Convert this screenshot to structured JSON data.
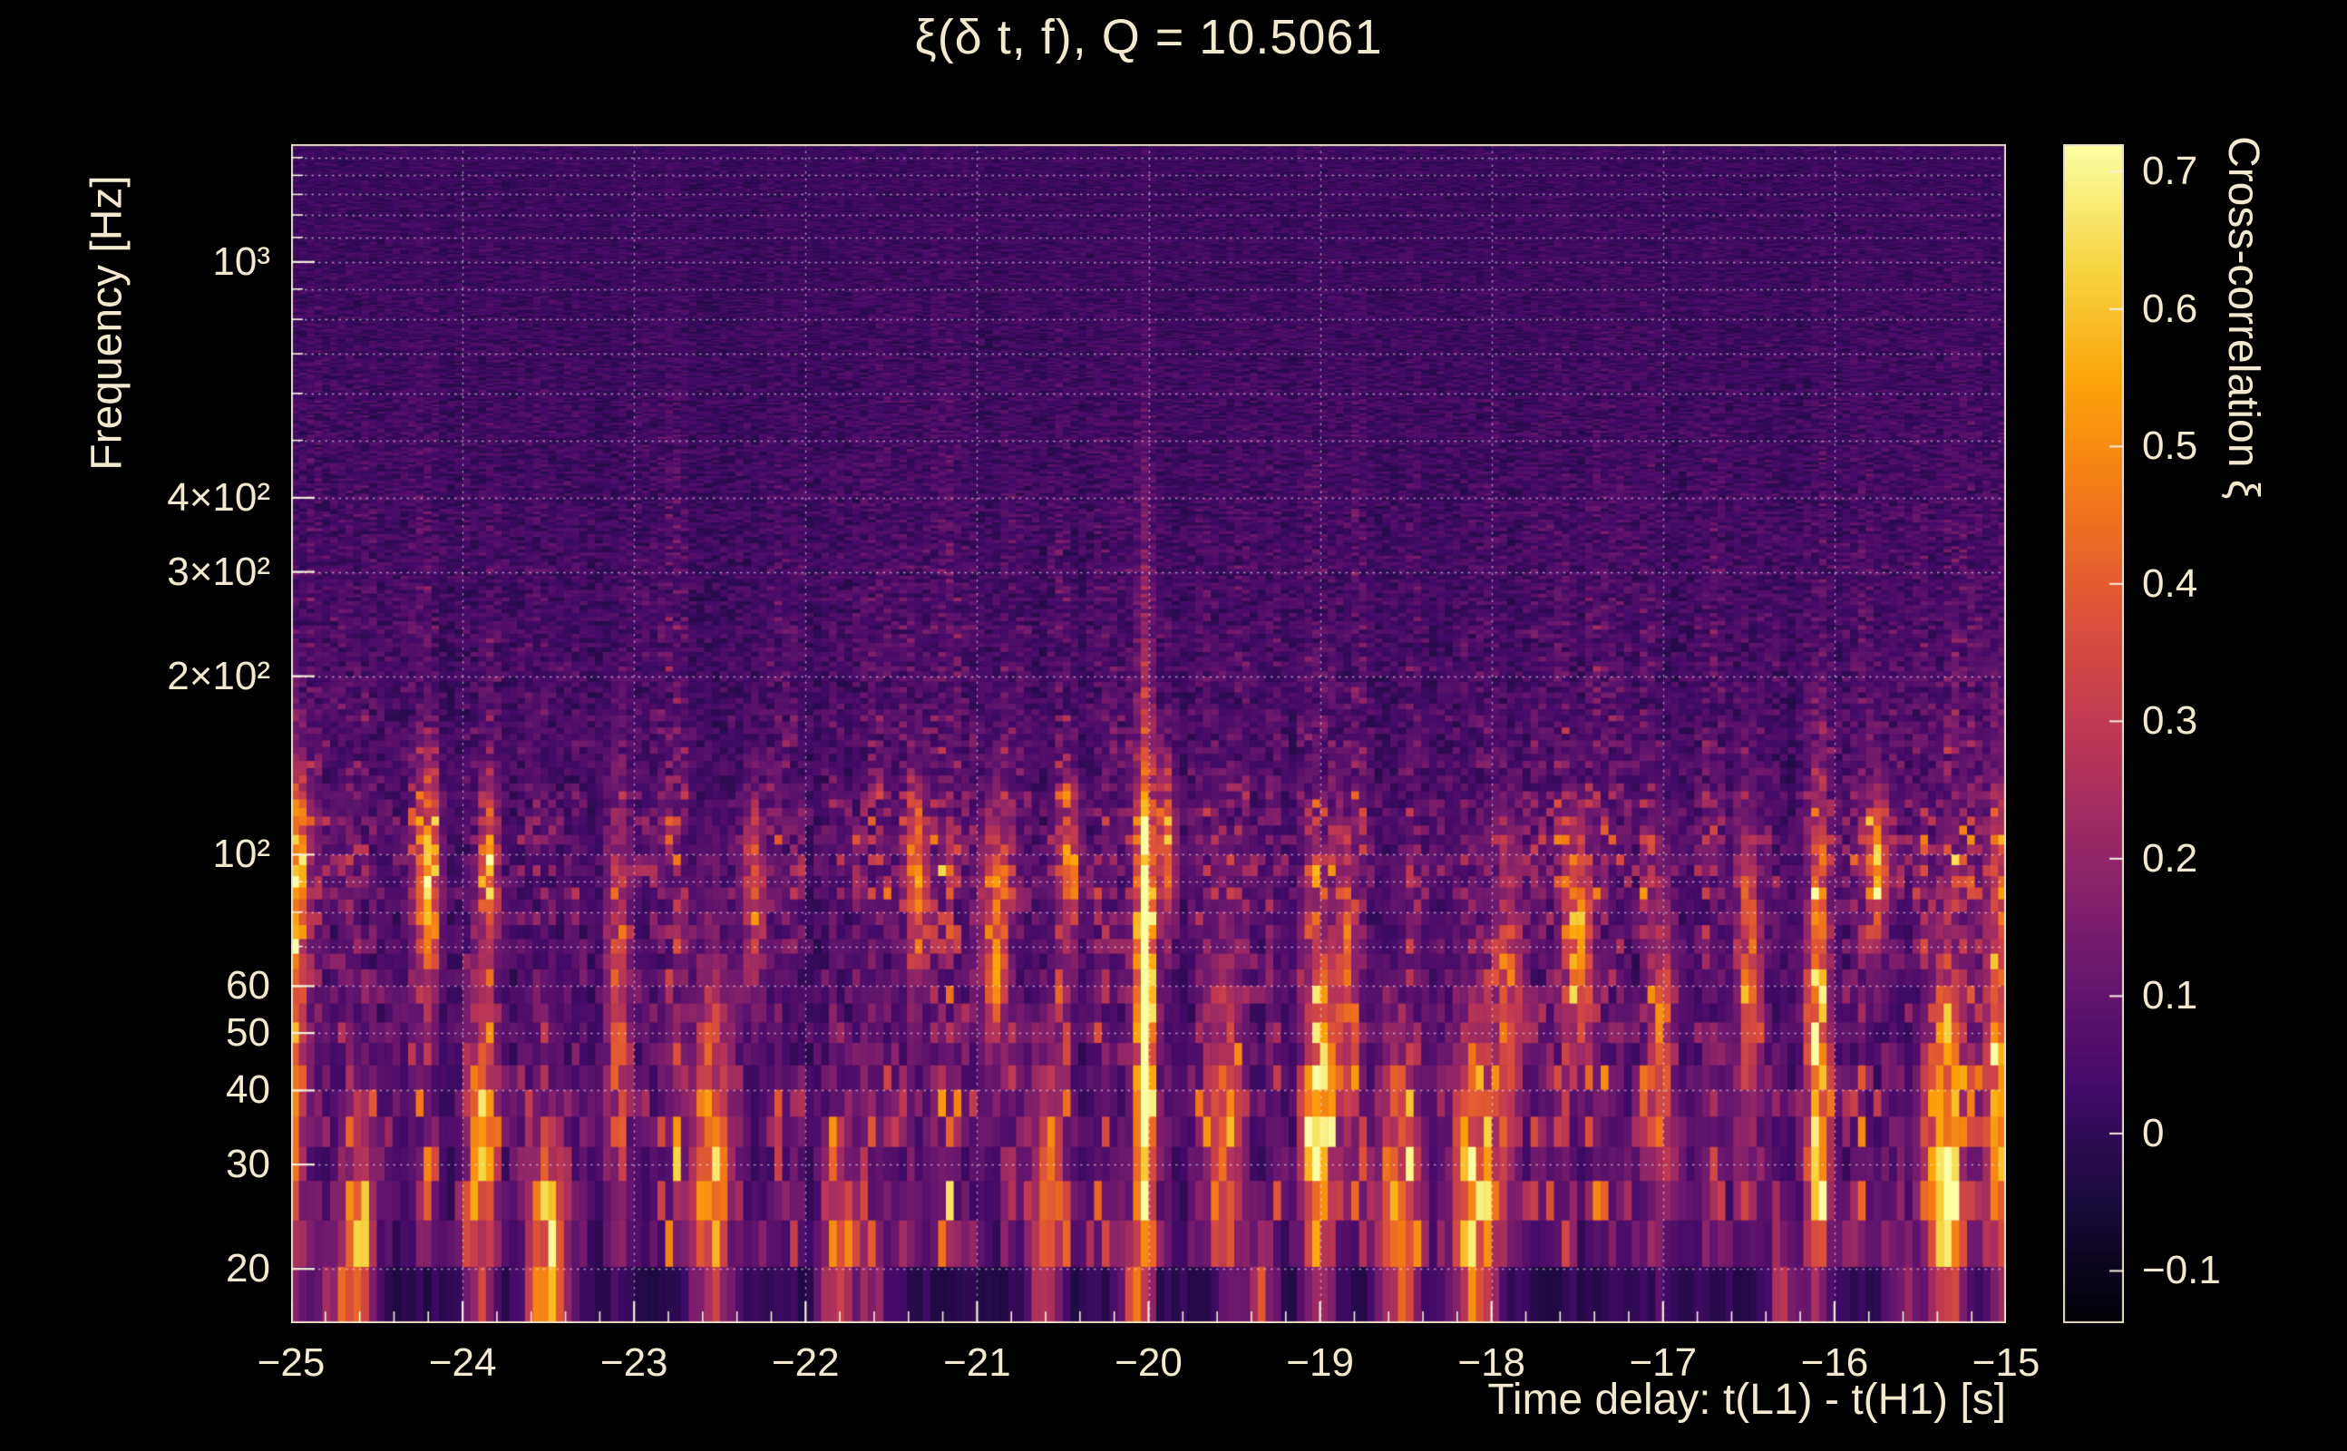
{
  "title": "ξ(δ t, f), Q = 10.5061",
  "colors": {
    "background": "#000000",
    "text": "#f3e9cf",
    "grid": "#ffffff",
    "frame": "#e9ddc0",
    "tick": "#f6efdc"
  },
  "chart_data": {
    "type": "heatmap",
    "title": "ξ(δ t, f), Q = 10.5061",
    "q_value": 10.5061,
    "xlabel": "Time delay: t(L1) - t(H1) [s]",
    "ylabel": "Frequency [Hz]",
    "colorbar_label": "Cross-correlation ξ",
    "x_range": [
      -25,
      -15
    ],
    "x_ticks": [
      {
        "value": -25,
        "label": "−25"
      },
      {
        "value": -24,
        "label": "−24"
      },
      {
        "value": -23,
        "label": "−23"
      },
      {
        "value": -22,
        "label": "−22"
      },
      {
        "value": -21,
        "label": "−21"
      },
      {
        "value": -20,
        "label": "−20"
      },
      {
        "value": -19,
        "label": "−19"
      },
      {
        "value": -18,
        "label": "−18"
      },
      {
        "value": -17,
        "label": "−17"
      },
      {
        "value": -16,
        "label": "−16"
      },
      {
        "value": -15,
        "label": "−15"
      }
    ],
    "x_minor_step": 0.2,
    "y_scale": "log",
    "y_range": [
      16.2,
      1580
    ],
    "y_ticks": [
      {
        "value": 1000,
        "label": "10³"
      },
      {
        "value": 400,
        "label": "4×10²"
      },
      {
        "value": 300,
        "label": "3×10²"
      },
      {
        "value": 200,
        "label": "2×10²"
      },
      {
        "value": 100,
        "label": "10²"
      },
      {
        "value": 60,
        "label": "60"
      },
      {
        "value": 50,
        "label": "50"
      },
      {
        "value": 40,
        "label": "40"
      },
      {
        "value": 30,
        "label": "30"
      },
      {
        "value": 20,
        "label": "20"
      }
    ],
    "grid": {
      "style": "dotted",
      "vertical_at": [
        -24,
        -23,
        -22,
        -21,
        -20,
        -19,
        -18,
        -17,
        -16
      ],
      "horizontal_at": [
        20,
        30,
        40,
        50,
        60,
        70,
        80,
        90,
        100,
        200,
        300,
        400,
        500,
        600,
        700,
        800,
        900,
        1000,
        1100,
        1200,
        1300,
        1400,
        1500
      ]
    },
    "color_range": [
      -0.138,
      0.72
    ],
    "colorbar_ticks": [
      {
        "value": 0.7,
        "label": "0.7"
      },
      {
        "value": 0.6,
        "label": "0.6"
      },
      {
        "value": 0.5,
        "label": "0.5"
      },
      {
        "value": 0.4,
        "label": "0.4"
      },
      {
        "value": 0.3,
        "label": "0.3"
      },
      {
        "value": 0.2,
        "label": "0.2"
      },
      {
        "value": 0.1,
        "label": "0.1"
      },
      {
        "value": 0,
        "label": "0"
      },
      {
        "value": -0.1,
        "label": "−0.1"
      }
    ],
    "palette": {
      "name": "inferno",
      "stops": [
        {
          "n": 0.0,
          "rgb": [
            0,
            0,
            4
          ]
        },
        {
          "n": 0.1,
          "rgb": [
            22,
            11,
            57
          ]
        },
        {
          "n": 0.2,
          "rgb": [
            66,
            10,
            104
          ]
        },
        {
          "n": 0.3,
          "rgb": [
            106,
            23,
            110
          ]
        },
        {
          "n": 0.4,
          "rgb": [
            147,
            38,
            103
          ]
        },
        {
          "n": 0.5,
          "rgb": [
            188,
            55,
            84
          ]
        },
        {
          "n": 0.6,
          "rgb": [
            221,
            81,
            58
          ]
        },
        {
          "n": 0.7,
          "rgb": [
            243,
            120,
            25
          ]
        },
        {
          "n": 0.8,
          "rgb": [
            252,
            165,
            10
          ]
        },
        {
          "n": 0.9,
          "rgb": [
            246,
            215,
            70
          ]
        },
        {
          "n": 1.0,
          "rgb": [
            252,
            255,
            164
          ]
        }
      ]
    },
    "noise": {
      "seed": 1337,
      "time_bins": 220,
      "freq_bin_hz": 4,
      "low_freq_boost_hz": 85,
      "hundred_hz_band_boost": 0.8
    },
    "features": [
      {
        "t": -25.0,
        "f": 45,
        "a": 0.5,
        "st": 0.05,
        "slf": 0.3
      },
      {
        "t": -24.95,
        "f": 95,
        "a": 0.4,
        "st": 0.04,
        "slf": 0.12
      },
      {
        "t": -24.75,
        "f": 17,
        "a": 0.35,
        "st": 0.08,
        "slf": 0.08
      },
      {
        "t": -24.6,
        "f": 20,
        "a": 0.45,
        "st": 0.06,
        "slf": 0.15
      },
      {
        "t": -24.2,
        "f": 92,
        "a": 0.5,
        "st": 0.05,
        "slf": 0.12
      },
      {
        "t": -23.9,
        "f": 30,
        "a": 0.5,
        "st": 0.06,
        "slf": 0.2
      },
      {
        "t": -23.85,
        "f": 95,
        "a": 0.45,
        "st": 0.04,
        "slf": 0.1
      },
      {
        "t": -23.5,
        "f": 20,
        "a": 0.5,
        "st": 0.08,
        "slf": 0.15
      },
      {
        "t": -23.5,
        "f": 17,
        "a": 0.3,
        "st": 0.08,
        "slf": 0.08
      },
      {
        "t": -23.1,
        "f": 55,
        "a": 0.35,
        "st": 0.05,
        "slf": 0.25
      },
      {
        "t": -22.55,
        "f": 28,
        "a": 0.55,
        "st": 0.08,
        "slf": 0.25
      },
      {
        "t": -22.3,
        "f": 85,
        "a": 0.4,
        "st": 0.04,
        "slf": 0.12
      },
      {
        "t": -21.8,
        "f": 20,
        "a": 0.45,
        "st": 0.07,
        "slf": 0.15
      },
      {
        "t": -21.6,
        "f": 17,
        "a": 0.3,
        "st": 0.06,
        "slf": 0.08
      },
      {
        "t": -21.35,
        "f": 88,
        "a": 0.45,
        "st": 0.04,
        "slf": 0.12
      },
      {
        "t": -20.9,
        "f": 72,
        "a": 0.5,
        "st": 0.05,
        "slf": 0.15
      },
      {
        "t": -20.6,
        "f": 24,
        "a": 0.45,
        "st": 0.06,
        "slf": 0.2
      },
      {
        "t": -20.45,
        "f": 95,
        "a": 0.4,
        "st": 0.04,
        "slf": 0.1
      },
      {
        "t": -20.02,
        "f": 58,
        "a": 0.8,
        "st": 0.035,
        "slf": 0.22
      },
      {
        "t": -20.02,
        "f": 45,
        "a": 0.4,
        "st": 0.03,
        "slf": 0.55
      },
      {
        "t": -20.1,
        "f": 17,
        "a": 0.4,
        "st": 0.05,
        "slf": 0.08
      },
      {
        "t": -19.9,
        "f": 105,
        "a": 0.4,
        "st": 0.04,
        "slf": 0.1
      },
      {
        "t": -19.55,
        "f": 35,
        "a": 0.45,
        "st": 0.06,
        "slf": 0.2
      },
      {
        "t": -19.35,
        "f": 17,
        "a": 0.35,
        "st": 0.06,
        "slf": 0.08
      },
      {
        "t": -19.0,
        "f": 33,
        "a": 0.6,
        "st": 0.06,
        "slf": 0.25
      },
      {
        "t": -18.85,
        "f": 60,
        "a": 0.35,
        "st": 0.04,
        "slf": 0.15
      },
      {
        "t": -18.55,
        "f": 24,
        "a": 0.5,
        "st": 0.08,
        "slf": 0.2
      },
      {
        "t": -18.1,
        "f": 25,
        "a": 0.55,
        "st": 0.09,
        "slf": 0.22
      },
      {
        "t": -17.9,
        "f": 55,
        "a": 0.4,
        "st": 0.05,
        "slf": 0.2
      },
      {
        "t": -17.5,
        "f": 70,
        "a": 0.6,
        "st": 0.05,
        "slf": 0.12
      },
      {
        "t": -17.0,
        "f": 45,
        "a": 0.4,
        "st": 0.05,
        "slf": 0.2
      },
      {
        "t": -16.5,
        "f": 60,
        "a": 0.4,
        "st": 0.05,
        "slf": 0.18
      },
      {
        "t": -16.3,
        "f": 17,
        "a": 0.35,
        "st": 0.06,
        "slf": 0.08
      },
      {
        "t": -16.1,
        "f": 42,
        "a": 0.55,
        "st": 0.05,
        "slf": 0.3
      },
      {
        "t": -15.75,
        "f": 95,
        "a": 0.45,
        "st": 0.04,
        "slf": 0.1
      },
      {
        "t": -15.6,
        "f": 17,
        "a": 0.3,
        "st": 0.06,
        "slf": 0.08
      },
      {
        "t": -15.35,
        "f": 28,
        "a": 0.6,
        "st": 0.07,
        "slf": 0.25
      },
      {
        "t": -15.05,
        "f": 45,
        "a": 0.5,
        "st": 0.05,
        "slf": 0.3
      }
    ]
  }
}
